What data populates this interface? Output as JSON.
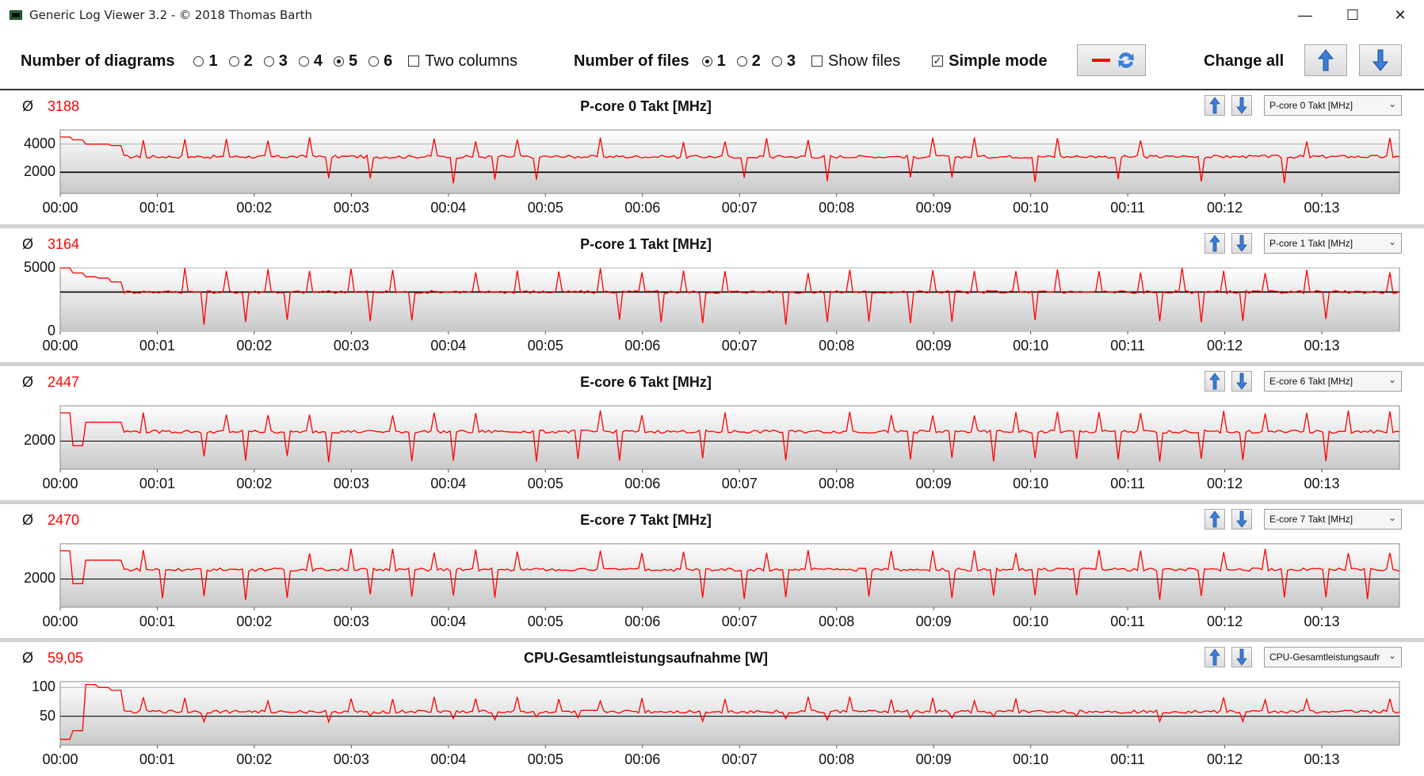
{
  "window": {
    "title": "Generic Log Viewer 3.2 - © 2018 Thomas Barth",
    "minimize": "—",
    "maximize": "☐",
    "close": "✕"
  },
  "toolbar": {
    "diagrams_label": "Number of diagrams",
    "diagram_options": [
      "1",
      "2",
      "3",
      "4",
      "5",
      "6"
    ],
    "diagram_selected": "5",
    "two_columns_label": "Two columns",
    "two_columns_checked": false,
    "files_label": "Number of files",
    "file_options": [
      "1",
      "2",
      "3"
    ],
    "file_selected": "1",
    "show_files_label": "Show files",
    "show_files_checked": false,
    "simple_mode_label": "Simple mode",
    "simple_mode_checked": true,
    "change_all_label": "Change all"
  },
  "colors": {
    "series": "#ff0000",
    "avg_text": "#ff0000",
    "accent_arrow": "#3a7fd9"
  },
  "panels": [
    {
      "avg_symbol": "Ø",
      "avg": "3188",
      "title": "P-core 0 Takt [MHz]",
      "select_value": "P-core 0 Takt [MHz]",
      "yticks": [
        "4000",
        "2000"
      ],
      "xticks": [
        "00:00",
        "00:01",
        "00:02",
        "00:03",
        "00:04",
        "00:05",
        "00:06",
        "00:07",
        "00:08",
        "00:09",
        "00:10",
        "00:11",
        "00:12",
        "00:13"
      ]
    },
    {
      "avg_symbol": "Ø",
      "avg": "3164",
      "title": "P-core 1 Takt [MHz]",
      "select_value": "P-core 1 Takt [MHz]",
      "yticks": [
        "5000",
        "0"
      ],
      "xticks": [
        "00:00",
        "00:01",
        "00:02",
        "00:03",
        "00:04",
        "00:05",
        "00:06",
        "00:07",
        "00:08",
        "00:09",
        "00:10",
        "00:11",
        "00:12",
        "00:13"
      ]
    },
    {
      "avg_symbol": "Ø",
      "avg": "2447",
      "title": "E-core 6 Takt [MHz]",
      "select_value": "E-core 6 Takt [MHz]",
      "yticks": [
        "2000"
      ],
      "xticks": [
        "00:00",
        "00:01",
        "00:02",
        "00:03",
        "00:04",
        "00:05",
        "00:06",
        "00:07",
        "00:08",
        "00:09",
        "00:10",
        "00:11",
        "00:12",
        "00:13"
      ]
    },
    {
      "avg_symbol": "Ø",
      "avg": "2470",
      "title": "E-core 7 Takt [MHz]",
      "select_value": "E-core 7 Takt [MHz]",
      "yticks": [
        "2000"
      ],
      "xticks": [
        "00:00",
        "00:01",
        "00:02",
        "00:03",
        "00:04",
        "00:05",
        "00:06",
        "00:07",
        "00:08",
        "00:09",
        "00:10",
        "00:11",
        "00:12",
        "00:13"
      ]
    },
    {
      "avg_symbol": "Ø",
      "avg": "59,05",
      "title": "CPU-Gesamtleistungsaufnahme [W]",
      "select_value": "CPU-Gesamtleistungsaufr",
      "yticks": [
        "100",
        "50"
      ],
      "xticks": [
        "00:00",
        "00:01",
        "00:02",
        "00:03",
        "00:04",
        "00:05",
        "00:06",
        "00:07",
        "00:08",
        "00:09",
        "00:10",
        "00:11",
        "00:12",
        "00:13"
      ]
    }
  ],
  "chart_data": [
    {
      "type": "line",
      "title": "P-core 0 Takt [MHz]",
      "ylim": [
        500,
        5000
      ],
      "reference_line": 2000,
      "xlim_minutes": [
        0,
        13.8
      ],
      "baseline": 3100,
      "series": [
        {
          "values_note_start": [
            4500,
            4300,
            4000,
            4000,
            3900
          ],
          "spike_high": 4500,
          "dip_low": 1200
        }
      ]
    },
    {
      "type": "line",
      "title": "P-core 1 Takt [MHz]",
      "ylim": [
        0,
        5000
      ],
      "reference_line": 3100,
      "xlim_minutes": [
        0,
        13.8
      ],
      "baseline": 3100,
      "series": [
        {
          "values_note_start": [
            5000,
            4600,
            4300,
            4200,
            3900
          ],
          "spike_high": 5000,
          "dip_low": 500
        }
      ]
    },
    {
      "type": "line",
      "title": "E-core 6 Takt [MHz]",
      "ylim": [
        800,
        3500
      ],
      "reference_line": 2000,
      "xlim_minutes": [
        0,
        13.8
      ],
      "baseline": 2400,
      "series": [
        {
          "values_note_start": [
            3200,
            1800,
            2800,
            2800,
            2800
          ],
          "spike_high": 3300,
          "dip_low": 1100
        }
      ]
    },
    {
      "type": "line",
      "title": "E-core 7 Takt [MHz]",
      "ylim": [
        800,
        3500
      ],
      "reference_line": 2000,
      "xlim_minutes": [
        0,
        13.8
      ],
      "baseline": 2400,
      "series": [
        {
          "values_note_start": [
            3200,
            1800,
            2800,
            2800,
            2800
          ],
          "spike_high": 3300,
          "dip_low": 1100
        }
      ]
    },
    {
      "type": "line",
      "title": "CPU-Gesamtleistungsaufnahme [W]",
      "ylim": [
        0,
        110
      ],
      "reference_line": 50,
      "xlim_minutes": [
        0,
        13.8
      ],
      "baseline": 58,
      "series": [
        {
          "values_note_start": [
            10,
            25,
            105,
            100,
            95
          ],
          "spike_high": 85,
          "dip_low": 40
        }
      ]
    }
  ]
}
